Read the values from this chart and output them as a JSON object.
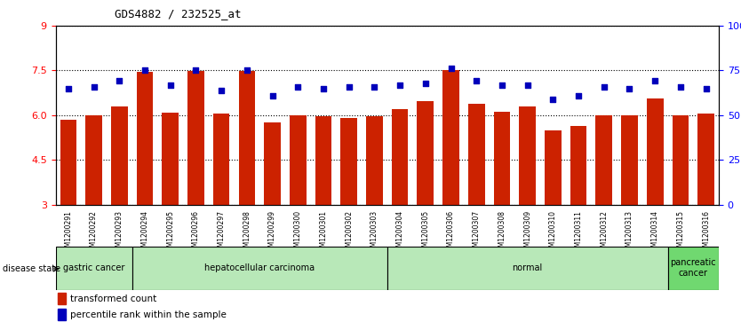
{
  "title": "GDS4882 / 232525_at",
  "samples": [
    "GSM1200291",
    "GSM1200292",
    "GSM1200293",
    "GSM1200294",
    "GSM1200295",
    "GSM1200296",
    "GSM1200297",
    "GSM1200298",
    "GSM1200299",
    "GSM1200300",
    "GSM1200301",
    "GSM1200302",
    "GSM1200303",
    "GSM1200304",
    "GSM1200305",
    "GSM1200306",
    "GSM1200307",
    "GSM1200308",
    "GSM1200309",
    "GSM1200310",
    "GSM1200311",
    "GSM1200312",
    "GSM1200313",
    "GSM1200314",
    "GSM1200315",
    "GSM1200316"
  ],
  "bar_values": [
    5.85,
    6.0,
    6.28,
    7.45,
    6.08,
    7.48,
    6.05,
    7.48,
    5.75,
    6.0,
    5.95,
    5.9,
    5.95,
    6.2,
    6.48,
    7.5,
    6.38,
    6.1,
    6.28,
    5.5,
    5.65,
    6.0,
    6.0,
    6.55,
    6.0,
    6.05
  ],
  "percentile_values": [
    65,
    66,
    69,
    75,
    67,
    75,
    64,
    75,
    61,
    66,
    65,
    66,
    66,
    67,
    68,
    76,
    69,
    67,
    67,
    59,
    61,
    66,
    65,
    69,
    66,
    65
  ],
  "group_starts": [
    0,
    3,
    13,
    24
  ],
  "group_ends": [
    3,
    13,
    24,
    26
  ],
  "group_labels": [
    "gastric cancer",
    "hepatocellular carcinoma",
    "normal",
    "pancreatic\ncancer"
  ],
  "group_colors": [
    "#b8e8b8",
    "#b8e8b8",
    "#b8e8b8",
    "#70d870"
  ],
  "ylim_left": [
    3,
    9
  ],
  "ylim_right": [
    0,
    100
  ],
  "yticks_left": [
    3,
    4.5,
    6.0,
    7.5,
    9
  ],
  "yticks_right": [
    0,
    25,
    50,
    75,
    100
  ],
  "bar_color": "#cc2200",
  "dot_color": "#0000bb",
  "grid_color": "black",
  "xtick_bg": "#d8d8d8"
}
